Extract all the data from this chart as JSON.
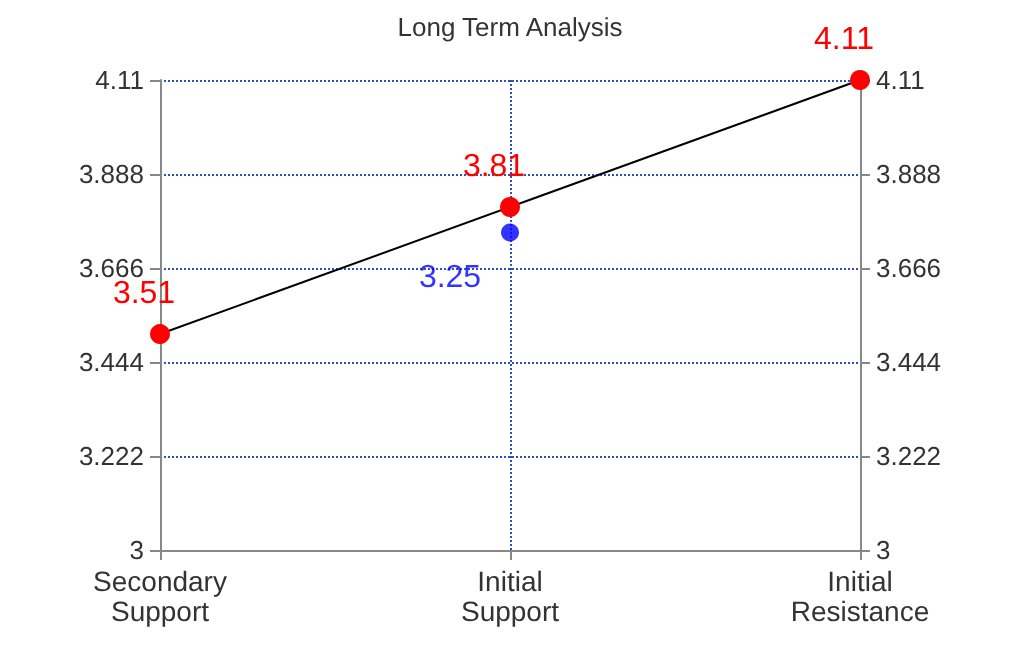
{
  "chart_data": {
    "type": "line",
    "title": "Long Term Analysis",
    "categories": [
      "Secondary Support",
      "Initial Support",
      "Initial Resistance"
    ],
    "series": [
      {
        "color": "#ff0000",
        "values": [
          3.51,
          3.81,
          4.11
        ],
        "value_labels": [
          "3.51",
          "3.81",
          "4.11"
        ]
      },
      {
        "type": "scatter",
        "color": "#0000ff",
        "values": [
          null,
          3.75,
          null
        ]
      }
    ],
    "annotations": [
      {
        "text": "3.25",
        "x": "Initial Support",
        "y": 3.75
      }
    ],
    "ylim": [
      3,
      4.11
    ],
    "yticks": [
      3,
      3.222,
      3.444,
      3.666,
      3.888,
      4.11
    ],
    "y2lim": [
      3,
      4.11
    ],
    "y2ticks": [
      3,
      3.222,
      3.444,
      3.666,
      3.888,
      4.11
    ],
    "grid": true,
    "marker": "circle"
  }
}
